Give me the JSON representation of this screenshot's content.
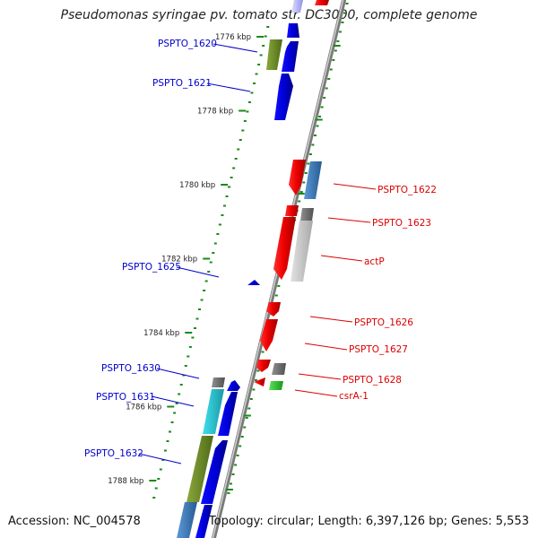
{
  "title": "Pseudomonas syringae pv. tomato str. DC3000, complete genome",
  "footer": {
    "accession": "Accession: NC_004578",
    "summary": "Topology: circular; Length: 6,397,126 bp; Genes: 5,553"
  },
  "colors": {
    "backbone": "#8c8c8c",
    "tick": "#1a8a1a",
    "minus_label": "#0000cc",
    "plus_label": "#dd0000",
    "blue": "#0000ee",
    "red": "#ee0000",
    "olive": "#6e8b2b",
    "cyan": "#1fc0cc",
    "steel": "#3a78b8",
    "gray": "#707070",
    "lightgray": "#c8c8c8",
    "green": "#20c020"
  },
  "scale": {
    "unit": "kbp",
    "ticks": [
      {
        "kbp": 1776,
        "label": "1776 kbp"
      },
      {
        "kbp": 1778,
        "label": "1778 kbp"
      },
      {
        "kbp": 1780,
        "label": "1780 kbp"
      },
      {
        "kbp": 1782,
        "label": "1782 kbp"
      },
      {
        "kbp": 1784,
        "label": "1784 kbp"
      },
      {
        "kbp": 1786,
        "label": "1786 kbp"
      },
      {
        "kbp": 1788,
        "label": "1788 kbp"
      }
    ]
  },
  "minus_strand_labels": [
    "PSPTO_1620",
    "PSPTO_1621",
    "PSPTO_1625",
    "PSPTO_1630",
    "PSPTO_1631",
    "PSPTO_1632"
  ],
  "plus_strand_labels": [
    "PSPTO_1622",
    "PSPTO_1623",
    "actP",
    "PSPTO_1626",
    "PSPTO_1627",
    "PSPTO_1628",
    "csrA-1"
  ]
}
